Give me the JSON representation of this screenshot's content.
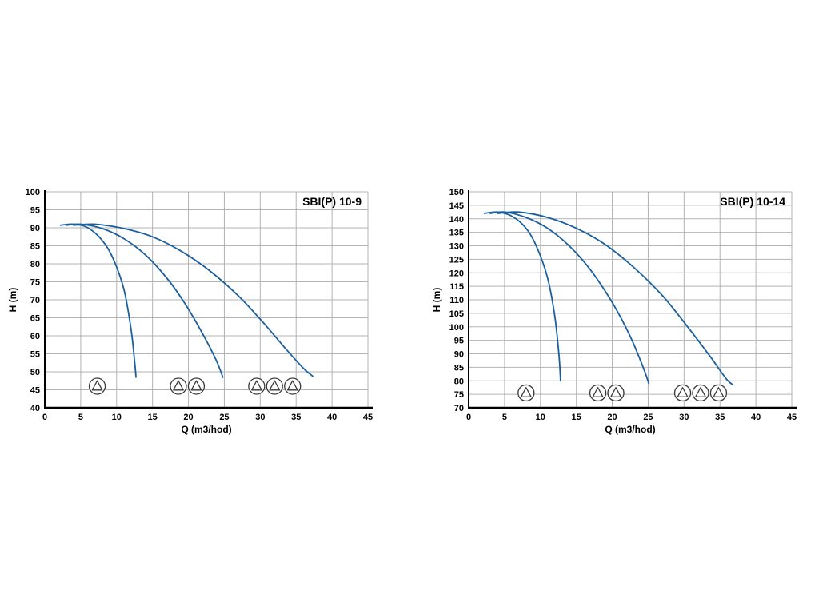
{
  "page": {
    "background": "#ffffff"
  },
  "chart_data": [
    {
      "type": "line",
      "title": "SBI(P) 10-9",
      "xlabel": "Q (m3/hod)",
      "ylabel": "H (m)",
      "xlim": [
        0,
        45
      ],
      "ylim": [
        40,
        100
      ],
      "xtick_step": 5,
      "ytick_step": 5,
      "grid": true,
      "legend": "none",
      "grid_color": "#b3b3b3",
      "axis_color": "#000000",
      "line_color": "#1a5f9e",
      "icon_color": "#3a3a3a",
      "series": [
        {
          "name": "1-pump-curve",
          "points": [
            [
              2.2,
              90.7
            ],
            [
              4,
              91
            ],
            [
              6,
              90
            ],
            [
              8,
              86.5
            ],
            [
              9.5,
              81.5
            ],
            [
              11,
              73
            ],
            [
              12,
              62
            ],
            [
              12.5,
              53
            ],
            [
              12.7,
              48.5
            ]
          ]
        },
        {
          "name": "2-pump-curve",
          "points": [
            [
              3,
              90.7
            ],
            [
              5,
              91
            ],
            [
              8,
              89.8
            ],
            [
              11,
              87
            ],
            [
              14,
              82.5
            ],
            [
              17,
              76
            ],
            [
              19.5,
              69
            ],
            [
              22,
              60.5
            ],
            [
              23.8,
              53.5
            ],
            [
              24.8,
              48.5
            ]
          ]
        },
        {
          "name": "3-pump-curve",
          "points": [
            [
              4,
              90.7
            ],
            [
              7,
              91
            ],
            [
              11,
              89.8
            ],
            [
              15,
              87.5
            ],
            [
              19,
              83.5
            ],
            [
              23,
              78
            ],
            [
              27,
              71
            ],
            [
              30.5,
              63.5
            ],
            [
              33.5,
              56.5
            ],
            [
              36,
              51
            ],
            [
              37.3,
              48.8
            ]
          ]
        }
      ],
      "pump_markers": {
        "h": 46,
        "groups": [
          [
            7.3
          ],
          [
            18.6,
            21.1
          ],
          [
            29.5,
            32,
            34.5
          ]
        ]
      }
    },
    {
      "type": "line",
      "title": "SBI(P) 10-14",
      "xlabel": "Q (m3/hod)",
      "ylabel": "H (m)",
      "xlim": [
        0,
        45
      ],
      "ylim": [
        70,
        150
      ],
      "xtick_step": 5,
      "ytick_step": 5,
      "grid": true,
      "legend": "none",
      "grid_color": "#b3b3b3",
      "axis_color": "#000000",
      "line_color": "#1a5f9e",
      "icon_color": "#3a3a3a",
      "series": [
        {
          "name": "1-pump-curve",
          "points": [
            [
              2.2,
              142
            ],
            [
              4,
              142.5
            ],
            [
              6,
              141
            ],
            [
              8,
              136.5
            ],
            [
              9.5,
              129.5
            ],
            [
              11,
              118
            ],
            [
              12,
              104
            ],
            [
              12.6,
              89
            ],
            [
              12.8,
              80
            ]
          ]
        },
        {
          "name": "2-pump-curve",
          "points": [
            [
              3,
              142
            ],
            [
              5,
              142.5
            ],
            [
              8,
              140.5
            ],
            [
              11,
              136.5
            ],
            [
              14,
              130
            ],
            [
              17,
              121
            ],
            [
              20,
              109
            ],
            [
              22.5,
              96.5
            ],
            [
              24.3,
              85
            ],
            [
              25.1,
              79
            ]
          ]
        },
        {
          "name": "3-pump-curve",
          "points": [
            [
              4,
              142
            ],
            [
              7,
              142.5
            ],
            [
              11,
              140.5
            ],
            [
              15,
              136.5
            ],
            [
              19,
              130.5
            ],
            [
              23,
              122
            ],
            [
              27,
              111.5
            ],
            [
              30.5,
              100
            ],
            [
              33.5,
              89.5
            ],
            [
              35.8,
              81
            ],
            [
              36.8,
              78.5
            ]
          ]
        }
      ],
      "pump_markers": {
        "h": 75.5,
        "groups": [
          [
            8
          ],
          [
            18,
            20.5
          ],
          [
            29.8,
            32.3,
            34.8
          ]
        ]
      }
    }
  ]
}
